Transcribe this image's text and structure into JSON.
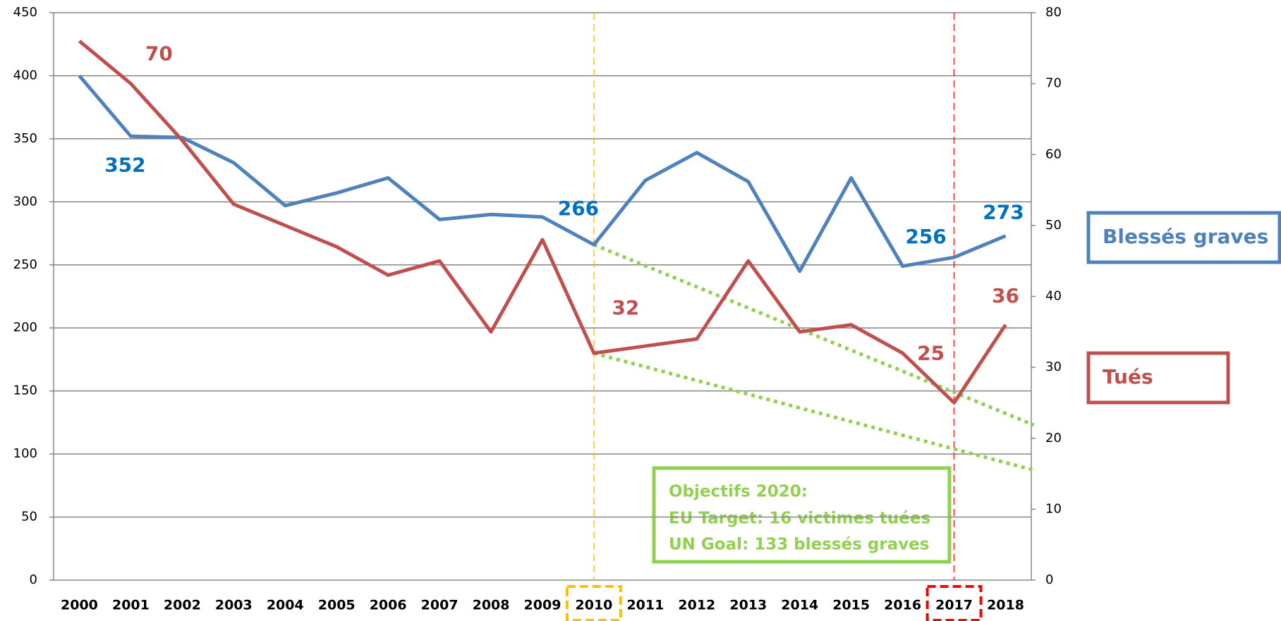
{
  "chart_data": {
    "type": "line",
    "x": [
      2000,
      2001,
      2002,
      2003,
      2004,
      2005,
      2006,
      2007,
      2008,
      2009,
      2010,
      2011,
      2012,
      2013,
      2014,
      2015,
      2016,
      2017,
      2018
    ],
    "series": [
      {
        "name": "Blessés graves",
        "color": "#4f81bd",
        "label_color": "#0070c0",
        "axis": "y",
        "values": [
          400,
          352,
          351,
          331,
          297,
          307,
          319,
          286,
          290,
          288,
          266,
          317,
          339,
          316,
          245,
          319,
          249,
          256,
          273
        ],
        "value_labels": [
          null,
          "352",
          null,
          null,
          null,
          null,
          null,
          null,
          null,
          null,
          "266",
          null,
          null,
          null,
          null,
          null,
          null,
          "256",
          "273"
        ]
      },
      {
        "name": "Tués",
        "color": "#c0504d",
        "label_color": "#c0504d",
        "axis": "y2",
        "values": [
          76,
          70,
          62,
          53,
          50,
          47,
          43,
          45,
          35,
          48,
          32,
          33,
          34,
          45,
          35,
          36,
          32,
          25,
          36
        ],
        "value_labels": [
          null,
          "70",
          null,
          null,
          null,
          null,
          null,
          null,
          null,
          null,
          "32",
          null,
          null,
          null,
          null,
          null,
          null,
          "25",
          "36"
        ]
      }
    ],
    "trend_lines": [
      {
        "axis": "y",
        "color": "#92d050",
        "x": [
          2010,
          2018.55
        ],
        "values": [
          266,
          123
        ]
      },
      {
        "axis": "y2",
        "color": "#92d050",
        "x": [
          2010,
          2018.55
        ],
        "values": [
          32,
          15.5
        ]
      }
    ],
    "highlights": [
      {
        "x": 2010,
        "color": "#ffc000"
      },
      {
        "x": 2017,
        "color": "#ff0000"
      }
    ],
    "annotation": [
      "Objectifs 2020:",
      "EU Target: 16 victimes tuées",
      "UN Goal: 133 blessés graves"
    ],
    "ylim": [
      0,
      450
    ],
    "yticks": [
      0,
      50,
      100,
      150,
      200,
      250,
      300,
      350,
      400,
      450
    ],
    "y2lim": [
      0,
      80
    ],
    "y2ticks": [
      0,
      10,
      20,
      30,
      40,
      50,
      60,
      70,
      80
    ],
    "grid": true
  }
}
